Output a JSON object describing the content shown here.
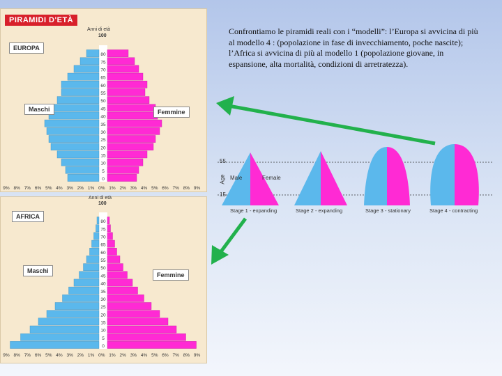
{
  "europe_panel": {
    "header": "PIRAMIDI D'ETÀ",
    "region": "EUROPA",
    "age_axis_title": "Anni di età",
    "age_top": "100",
    "males": "Maschi",
    "females": "Femmine",
    "age_ticks": [
      "80",
      "75",
      "70",
      "65",
      "60",
      "55",
      "50",
      "45",
      "40",
      "35",
      "30",
      "25",
      "20",
      "15",
      "10",
      "5",
      "0"
    ],
    "pct_ticks": [
      "9%",
      "8%",
      "7%",
      "6%",
      "5%",
      "4%",
      "3%",
      "2%",
      "1%",
      "0%",
      "1%",
      "2%",
      "3%",
      "4%",
      "5%",
      "6%",
      "7%",
      "8%",
      "9%"
    ],
    "male_pct": [
      1.2,
      1.8,
      2.4,
      3.0,
      3.6,
      3.6,
      4.0,
      4.6,
      4.8,
      5.2,
      5.0,
      4.8,
      4.6,
      4.0,
      3.6,
      3.2,
      3.0
    ],
    "female_pct": [
      2.0,
      2.6,
      3.0,
      3.4,
      3.8,
      3.6,
      4.0,
      4.6,
      4.8,
      5.2,
      5.0,
      4.6,
      4.4,
      3.8,
      3.4,
      3.0,
      2.8
    ]
  },
  "africa_panel": {
    "region": "AFRICA",
    "age_axis_title": "Anni di età",
    "age_top": "100",
    "males": "Maschi",
    "females": "Femmine",
    "age_ticks": [
      "80",
      "75",
      "70",
      "65",
      "60",
      "55",
      "50",
      "45",
      "40",
      "35",
      "30",
      "25",
      "20",
      "15",
      "10",
      "5",
      "0"
    ],
    "pct_ticks": [
      "9%",
      "8%",
      "7%",
      "6%",
      "5%",
      "4%",
      "3%",
      "2%",
      "1%",
      "0%",
      "1%",
      "2%",
      "3%",
      "4%",
      "5%",
      "6%",
      "7%",
      "8%",
      "9%"
    ],
    "male_pct": [
      0.2,
      0.3,
      0.5,
      0.7,
      0.9,
      1.2,
      1.5,
      1.9,
      2.4,
      2.9,
      3.5,
      4.2,
      5.0,
      5.8,
      6.6,
      7.5,
      8.5
    ],
    "female_pct": [
      0.2,
      0.3,
      0.5,
      0.7,
      0.9,
      1.2,
      1.5,
      1.9,
      2.4,
      2.9,
      3.5,
      4.2,
      5.0,
      5.8,
      6.6,
      7.5,
      8.5
    ]
  },
  "caption": "Confrontiamo le piramidi reali con i “modelli”: l’Europa si avvicina di più al modello 4 : (popolazione  in fase di invecchiamento, poche nascite); l’Africa si avvicina di più al modello 1 (popolazione giovane, in espansione, alta mortalità, condizioni di arretratezza).",
  "models": {
    "age_label": "Age",
    "tick_55": "55",
    "tick_15": "15",
    "male": "Male",
    "female": "Female",
    "stage_labels": [
      "Stage 1 - expanding",
      "Stage 2 - expanding",
      "Stage 3 - stationary",
      "Stage 4 - contracting"
    ]
  },
  "colors": {
    "male": "#5bb8ec",
    "female": "#ff2ad4",
    "arrow": "#22b14c",
    "red_header": "#d8202b"
  }
}
